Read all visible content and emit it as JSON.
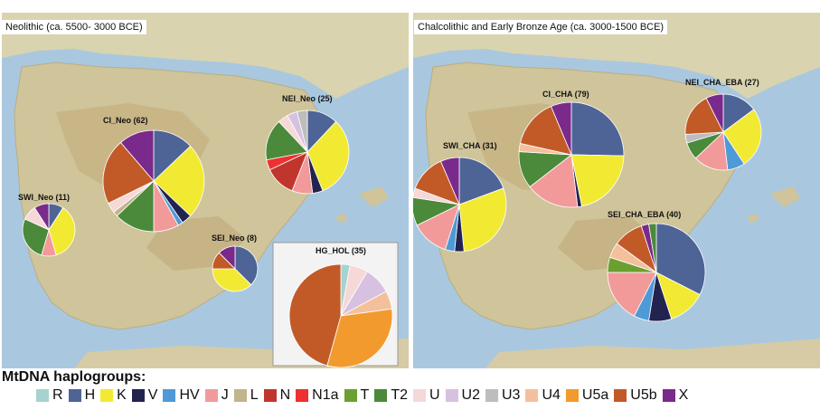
{
  "panels": {
    "left_title": "Neolithic (ca. 5500- 3000 BCE)",
    "right_title": "Chalcolithic and Early Bronze Age (ca. 3000-1500 BCE)"
  },
  "legend": {
    "title": "MtDNA haplogroups:",
    "items": [
      {
        "label": "R",
        "color": "#a6d3cf"
      },
      {
        "label": "H",
        "color": "#4e6496"
      },
      {
        "label": "K",
        "color": "#f2ea32"
      },
      {
        "label": "V",
        "color": "#23234f"
      },
      {
        "label": "HV",
        "color": "#4f9ad6"
      },
      {
        "label": "J",
        "color": "#f29a9a"
      },
      {
        "label": "L",
        "color": "#c2b48b"
      },
      {
        "label": "N",
        "color": "#c0362c"
      },
      {
        "label": "N1a",
        "color": "#ee3030"
      },
      {
        "label": "T",
        "color": "#6aa030"
      },
      {
        "label": "T2",
        "color": "#4a8a3a"
      },
      {
        "label": "U",
        "color": "#f6d8d8"
      },
      {
        "label": "U2",
        "color": "#d6c2e0"
      },
      {
        "label": "U3",
        "color": "#bdbdbd"
      },
      {
        "label": "U4",
        "color": "#f4c09c"
      },
      {
        "label": "U5a",
        "color": "#f39a2e"
      },
      {
        "label": "U5b",
        "color": "#c25a28"
      },
      {
        "label": "X",
        "color": "#7a2a8a"
      }
    ]
  },
  "pies": [
    {
      "id": "ci-neo",
      "label": "CI_Neo (62)",
      "panel": "left",
      "slices": [
        {
          "hg": "H",
          "v": 8
        },
        {
          "hg": "K",
          "v": 15
        },
        {
          "hg": "V",
          "v": 2
        },
        {
          "hg": "HV",
          "v": 1
        },
        {
          "hg": "J",
          "v": 5
        },
        {
          "hg": "T2",
          "v": 8
        },
        {
          "hg": "L",
          "v": 1
        },
        {
          "hg": "U",
          "v": 2
        },
        {
          "hg": "U5b",
          "v": 13
        },
        {
          "hg": "X",
          "v": 7
        }
      ]
    },
    {
      "id": "nei-neo",
      "label": "NEI_Neo (25)",
      "panel": "left",
      "slices": [
        {
          "hg": "H",
          "v": 3
        },
        {
          "hg": "K",
          "v": 8
        },
        {
          "hg": "V",
          "v": 1
        },
        {
          "hg": "J",
          "v": 2
        },
        {
          "hg": "N",
          "v": 3
        },
        {
          "hg": "N1a",
          "v": 1
        },
        {
          "hg": "T2",
          "v": 4
        },
        {
          "hg": "U",
          "v": 1
        },
        {
          "hg": "U2",
          "v": 1
        },
        {
          "hg": "U3",
          "v": 1
        }
      ]
    },
    {
      "id": "swi-neo",
      "label": "SWI_Neo (11)",
      "panel": "left",
      "slices": [
        {
          "hg": "H",
          "v": 1
        },
        {
          "hg": "K",
          "v": 4
        },
        {
          "hg": "J",
          "v": 1
        },
        {
          "hg": "T2",
          "v": 3
        },
        {
          "hg": "U",
          "v": 1
        },
        {
          "hg": "X",
          "v": 1
        }
      ]
    },
    {
      "id": "sei-neo",
      "label": "SEI_Neo (8)",
      "panel": "left",
      "slices": [
        {
          "hg": "H",
          "v": 3
        },
        {
          "hg": "K",
          "v": 3
        },
        {
          "hg": "U5b",
          "v": 1
        },
        {
          "hg": "X",
          "v": 1
        }
      ]
    },
    {
      "id": "hg-hol",
      "label": "HG_HOL (35)",
      "panel": "left",
      "slices": [
        {
          "hg": "R",
          "v": 1
        },
        {
          "hg": "U",
          "v": 2
        },
        {
          "hg": "U2",
          "v": 3
        },
        {
          "hg": "U4",
          "v": 2
        },
        {
          "hg": "U5a",
          "v": 11
        },
        {
          "hg": "U5b",
          "v": 16
        }
      ]
    },
    {
      "id": "ci-cha",
      "label": "CI_CHA (79)",
      "panel": "right",
      "slices": [
        {
          "hg": "H",
          "v": 20
        },
        {
          "hg": "K",
          "v": 17
        },
        {
          "hg": "V",
          "v": 1
        },
        {
          "hg": "J",
          "v": 13
        },
        {
          "hg": "T2",
          "v": 9
        },
        {
          "hg": "U4",
          "v": 2
        },
        {
          "hg": "U5b",
          "v": 12
        },
        {
          "hg": "X",
          "v": 5
        }
      ]
    },
    {
      "id": "nei-cha-eba",
      "label": "NEI_CHA_EBA (27)",
      "panel": "right",
      "slices": [
        {
          "hg": "H",
          "v": 4
        },
        {
          "hg": "K",
          "v": 7
        },
        {
          "hg": "HV",
          "v": 2
        },
        {
          "hg": "J",
          "v": 4
        },
        {
          "hg": "T2",
          "v": 2
        },
        {
          "hg": "U3",
          "v": 1
        },
        {
          "hg": "U5b",
          "v": 5
        },
        {
          "hg": "X",
          "v": 2
        }
      ]
    },
    {
      "id": "swi-cha",
      "label": "SWI_CHA (31)",
      "panel": "right",
      "slices": [
        {
          "hg": "H",
          "v": 6
        },
        {
          "hg": "K",
          "v": 9
        },
        {
          "hg": "V",
          "v": 1
        },
        {
          "hg": "HV",
          "v": 1
        },
        {
          "hg": "J",
          "v": 4
        },
        {
          "hg": "T2",
          "v": 3
        },
        {
          "hg": "U",
          "v": 1
        },
        {
          "hg": "U5b",
          "v": 4
        },
        {
          "hg": "X",
          "v": 2
        }
      ]
    },
    {
      "id": "sei-cha-eba",
      "label": "SEI_CHA_EBA (40)",
      "panel": "right",
      "slices": [
        {
          "hg": "H",
          "v": 13
        },
        {
          "hg": "K",
          "v": 5
        },
        {
          "hg": "V",
          "v": 3
        },
        {
          "hg": "HV",
          "v": 2
        },
        {
          "hg": "J",
          "v": 7
        },
        {
          "hg": "T",
          "v": 2
        },
        {
          "hg": "U4",
          "v": 2
        },
        {
          "hg": "U5b",
          "v": 4
        },
        {
          "hg": "X",
          "v": 1
        },
        {
          "hg": "T2",
          "v": 1
        }
      ]
    }
  ]
}
